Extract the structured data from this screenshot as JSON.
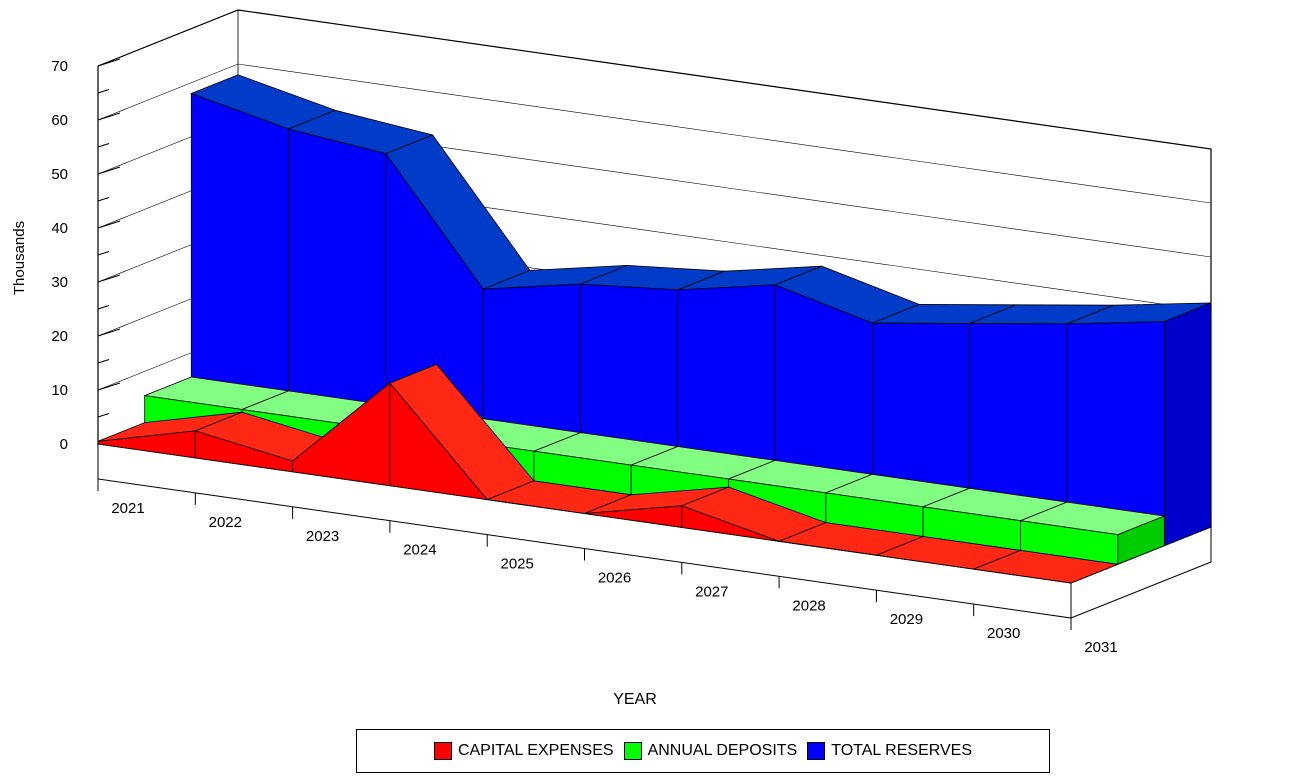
{
  "chart_data": {
    "type": "area",
    "view": "3d-ribbon",
    "categories": [
      "2021",
      "2022",
      "2023",
      "2024",
      "2025",
      "2026",
      "2027",
      "2028",
      "2029",
      "2030",
      "2031"
    ],
    "xlabel": "YEAR",
    "ylabel": "Thousands",
    "ylim": [
      0,
      70
    ],
    "yticks": [
      0,
      10,
      20,
      30,
      40,
      50,
      60,
      70
    ],
    "grid": true,
    "legend_position": "bottom",
    "series": [
      {
        "name": "CAPITAL EXPENSES",
        "color": "#ff0000",
        "values": [
          0.5,
          5,
          2,
          19,
          0,
          0,
          4,
          0,
          0,
          0,
          0
        ]
      },
      {
        "name": "ANNUAL DEPOSITS",
        "color": "#00ff00",
        "values": [
          5.5,
          5.5,
          5.5,
          5.5,
          5.5,
          5.5,
          5.5,
          5.5,
          5.5,
          5.5,
          5.5
        ]
      },
      {
        "name": "TOTAL RESERVES",
        "color": "#0000ff",
        "values": [
          58,
          54,
          52,
          29.5,
          33,
          34.5,
          38,
          33.5,
          36,
          38.5,
          41.5
        ]
      }
    ]
  }
}
